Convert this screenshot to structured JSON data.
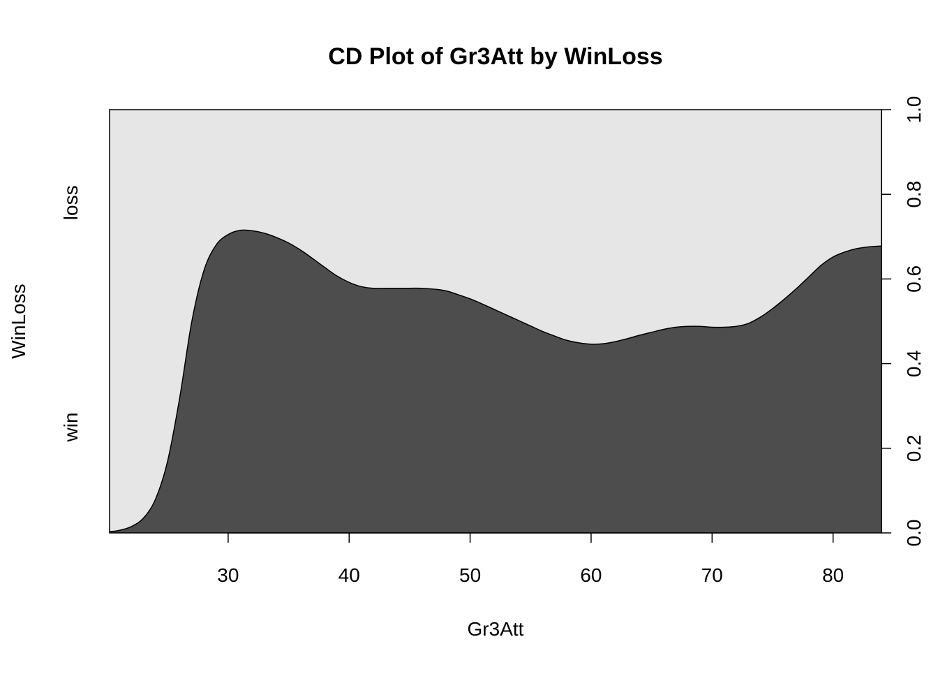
{
  "chart_data": {
    "type": "area",
    "title": "CD Plot of Gr3Att by WinLoss",
    "xlabel": "Gr3Att",
    "ylabel": "WinLoss",
    "xlim": [
      20.2,
      84
    ],
    "ylim": [
      0,
      1
    ],
    "x_ticks": [
      30,
      40,
      50,
      60,
      70,
      80
    ],
    "y_ticks": [
      0.0,
      0.2,
      0.4,
      0.6,
      0.8,
      1.0
    ],
    "y_tick_labels": [
      "0.0",
      "0.2",
      "0.4",
      "0.6",
      "0.8",
      "1.0"
    ],
    "categories": [
      "win",
      "loss"
    ],
    "colors": {
      "win": "#4d4d4d",
      "loss": "#e6e6e6"
    },
    "series": [
      {
        "name": "win",
        "x": [
          20.2,
          21,
          22,
          23,
          24,
          25,
          26,
          27,
          28,
          29,
          30,
          31,
          32,
          33,
          34,
          35,
          36,
          37,
          38,
          39,
          40,
          41,
          42,
          43,
          44,
          45,
          46,
          47,
          48,
          49,
          50,
          51,
          52,
          53,
          54,
          55,
          56,
          57,
          58,
          59,
          60,
          61,
          62,
          63,
          64,
          65,
          66,
          67,
          68,
          69,
          70,
          71,
          72,
          73,
          74,
          75,
          76,
          77,
          78,
          79,
          80,
          81,
          82,
          83,
          84
        ],
        "values": [
          0.003,
          0.006,
          0.015,
          0.035,
          0.08,
          0.17,
          0.32,
          0.5,
          0.62,
          0.68,
          0.705,
          0.715,
          0.714,
          0.708,
          0.698,
          0.685,
          0.668,
          0.648,
          0.627,
          0.607,
          0.592,
          0.582,
          0.578,
          0.578,
          0.578,
          0.578,
          0.578,
          0.576,
          0.572,
          0.563,
          0.553,
          0.541,
          0.528,
          0.515,
          0.502,
          0.489,
          0.476,
          0.465,
          0.455,
          0.449,
          0.446,
          0.447,
          0.452,
          0.459,
          0.467,
          0.474,
          0.481,
          0.486,
          0.488,
          0.488,
          0.486,
          0.486,
          0.488,
          0.495,
          0.51,
          0.53,
          0.553,
          0.578,
          0.605,
          0.632,
          0.652,
          0.664,
          0.672,
          0.676,
          0.678
        ]
      }
    ],
    "grid": false,
    "legend": "none"
  }
}
